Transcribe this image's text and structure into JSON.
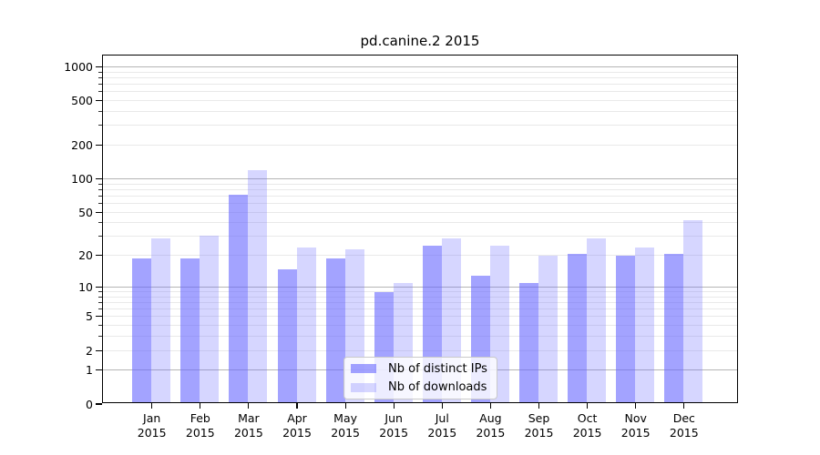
{
  "chart_data": {
    "type": "bar",
    "title": "pd.canine.2 2015",
    "categories": [
      "Jan",
      "Feb",
      "Mar",
      "Apr",
      "May",
      "Jun",
      "Jul",
      "Aug",
      "Sep",
      "Oct",
      "Nov",
      "Dec"
    ],
    "year": "2015",
    "series": [
      {
        "name": "Nb of distinct IPs",
        "color": "rgba(102,102,255,0.6)",
        "values": [
          19,
          19,
          72,
          15,
          19,
          9,
          25,
          13,
          11,
          21,
          20,
          21
        ]
      },
      {
        "name": "Nb of downloads",
        "color": "rgba(102,102,255,0.27)",
        "values": [
          29,
          31,
          120,
          24,
          23,
          11,
          29,
          25,
          20,
          29,
          24,
          43
        ]
      }
    ],
    "yscale": "log1p",
    "ylim": [
      0,
      1250
    ],
    "y_ticks": [
      0,
      1,
      2,
      5,
      10,
      20,
      50,
      100,
      200,
      500,
      1000
    ],
    "grid": {
      "major_values": [
        1,
        10,
        100,
        1000
      ],
      "minor_values": [
        2,
        3,
        4,
        5,
        6,
        7,
        8,
        9,
        20,
        30,
        40,
        50,
        60,
        70,
        80,
        90,
        200,
        300,
        400,
        500,
        600,
        700,
        800,
        900
      ],
      "major_color": "#b5b5b5",
      "minor_color": "#e9e9e9"
    },
    "legend_position": "bottom-center"
  }
}
